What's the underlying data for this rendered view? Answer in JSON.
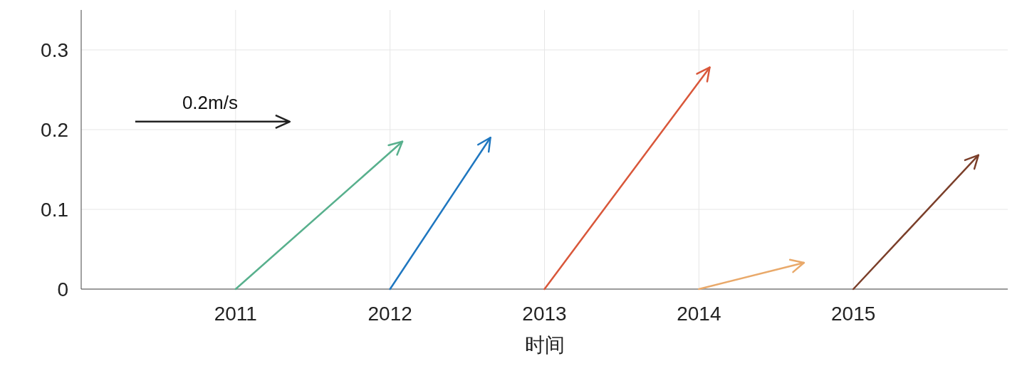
{
  "chart_data": {
    "type": "line",
    "xlabel": "时间",
    "xlim": [
      2010,
      2016
    ],
    "xticks": [
      2011,
      2012,
      2013,
      2014,
      2015
    ],
    "ylim": [
      0,
      0.35
    ],
    "yticks": [
      0,
      0.1,
      0.2,
      0.3
    ],
    "grid": true,
    "annotations": [
      "0.2m/s"
    ],
    "series": [
      {
        "color": "#58b08d",
        "x": [
          2011,
          2012.08
        ],
        "values": [
          0,
          0.185
        ]
      },
      {
        "color": "#1f77c0",
        "x": [
          2012,
          2012.65
        ],
        "values": [
          0,
          0.19
        ]
      },
      {
        "color": "#d9573a",
        "x": [
          2013,
          2014.07
        ],
        "values": [
          0,
          0.278
        ]
      },
      {
        "color": "#e9a96a",
        "x": [
          2014,
          2014.68
        ],
        "values": [
          0,
          0.033
        ]
      },
      {
        "color": "#7b3f2a",
        "x": [
          2015,
          2015.81
        ],
        "values": [
          0,
          0.168
        ]
      }
    ]
  }
}
